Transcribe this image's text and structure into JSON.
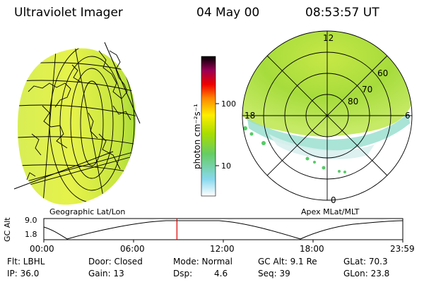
{
  "header": {
    "instrument": "Ultraviolet Imager",
    "date": "04 May 00",
    "time": "08:53:57 UT"
  },
  "geo_panel": {
    "caption": "Geographic Lat/Lon"
  },
  "polar_panel": {
    "caption": "Apex MLat/MLT",
    "mlt_labels": {
      "top": "12",
      "left": "18",
      "right": "6",
      "bottom": "0"
    },
    "mlat_labels": [
      "80",
      "70",
      "60"
    ]
  },
  "colorbar": {
    "unit_label": "photon cm⁻²s⁻¹",
    "ticks": [
      "100",
      "10"
    ],
    "stops": [
      "#ffffff",
      "#66ccee",
      "#99dd00",
      "#ffff00",
      "#ff8800",
      "#ee0000",
      "#990055",
      "#000000"
    ]
  },
  "altitude_plot": {
    "ylabel": "GC Alt",
    "yticks": [
      "9.0",
      "1.8"
    ],
    "xticks": [
      "00:00",
      "06:00",
      "12:00",
      "18:00",
      "23:59"
    ],
    "marker_color": "#dd0000",
    "marker_time_hours": 8.9
  },
  "status": {
    "flt": "Flt: LBHL",
    "ip": "IP: 36.0",
    "door": "Door: Closed",
    "gain": "Gain: 13",
    "mode": "Mode: Normal",
    "dsp_label": "Dsp:",
    "dsp_value": "4.6",
    "gc_alt": "GC Alt: 9.1 Re",
    "seq": "Seq: 39",
    "glat": "GLat: 70.3",
    "glon": "GLon: 23.8"
  }
}
